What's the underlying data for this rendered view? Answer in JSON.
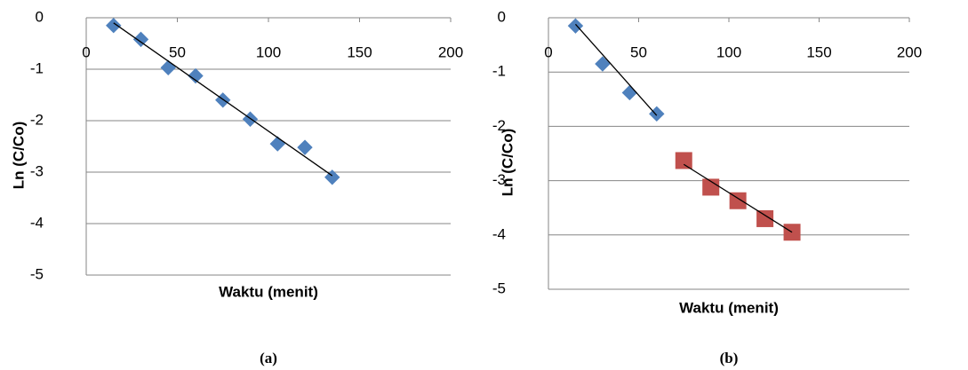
{
  "chart_data": [
    {
      "type": "scatter",
      "x_label": "Waktu (menit)",
      "y_label": "Ln (C/Co)",
      "caption": "(a)",
      "xlim": [
        0,
        200
      ],
      "xticks": [
        0,
        50,
        100,
        150,
        200
      ],
      "ylim": [
        -5,
        0
      ],
      "yticks": [
        0,
        -1,
        -2,
        -3,
        -4,
        -5
      ],
      "grid": true,
      "series": [
        {
          "color": "#4f81bd",
          "marker": "diamond",
          "x": [
            15,
            30,
            45,
            60,
            75,
            90,
            105,
            120,
            135
          ],
          "values": [
            -0.15,
            -0.42,
            -0.97,
            -1.13,
            -1.6,
            -1.97,
            -2.45,
            -2.52,
            -3.1
          ]
        }
      ],
      "trendlines": [
        {
          "color": "#000000",
          "x": [
            15,
            135
          ],
          "y": [
            -0.1,
            -3.07
          ]
        }
      ]
    },
    {
      "type": "scatter",
      "x_label": "Waktu (menit)",
      "y_label": "Ln (C/Co)",
      "caption": "(b)",
      "xlim": [
        0,
        200
      ],
      "xticks": [
        0,
        50,
        100,
        150,
        200
      ],
      "ylim": [
        -5,
        0
      ],
      "yticks": [
        0,
        -1,
        -2,
        -3,
        -4,
        -5
      ],
      "grid": true,
      "series": [
        {
          "color": "#4f81bd",
          "marker": "diamond",
          "x": [
            15,
            30,
            45,
            60
          ],
          "values": [
            -0.15,
            -0.85,
            -1.38,
            -1.77
          ]
        },
        {
          "color": "#c0504d",
          "marker": "square",
          "x": [
            75,
            90,
            105,
            120,
            135
          ],
          "values": [
            -2.63,
            -3.12,
            -3.37,
            -3.7,
            -3.95
          ]
        }
      ],
      "trendlines": [
        {
          "color": "#000000",
          "x": [
            15,
            60
          ],
          "y": [
            -0.12,
            -1.8
          ]
        },
        {
          "color": "#000000",
          "x": [
            75,
            135
          ],
          "y": [
            -2.7,
            -3.95
          ]
        }
      ]
    }
  ]
}
